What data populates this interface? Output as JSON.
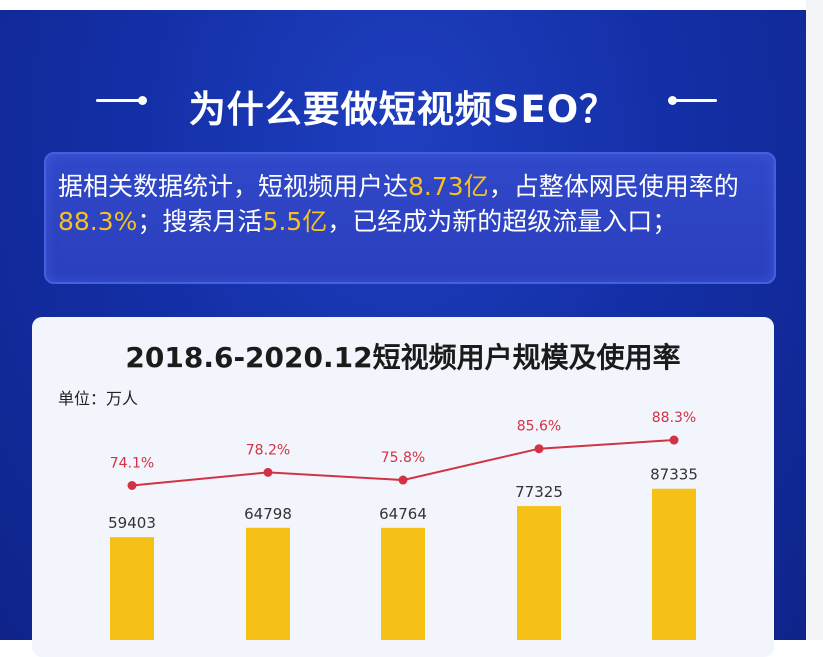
{
  "heading": "为什么要做短视频SEO？",
  "intro": {
    "part1": "据相关数据统计，短视频用户达",
    "users": "8.73亿",
    "part2": "，占整体网民使用率的",
    "rate": "88.3%",
    "part3": "；搜索月活",
    "search": "5.5亿",
    "part4": "，已经成为新的超级流量入口；"
  },
  "colors": {
    "background": "#1430a8",
    "bar": "#f6c117",
    "line": "#d23344",
    "highlight": "#f6c020"
  },
  "chart_data": {
    "type": "bar",
    "title": "2018.6-2020.12短视频用户规模及使用率",
    "unit_label": "单位：万人",
    "categories": [
      "",
      "",
      "",
      "",
      ""
    ],
    "series": [
      {
        "values": [
          59403,
          64798,
          64764,
          77325,
          87335
        ]
      },
      {
        "values": [
          74.1,
          78.2,
          75.8,
          85.6,
          88.3
        ],
        "labels": [
          "74.1%",
          "78.2%",
          "75.8%",
          "85.6%",
          "88.3%"
        ]
      }
    ],
    "grid": false
  }
}
